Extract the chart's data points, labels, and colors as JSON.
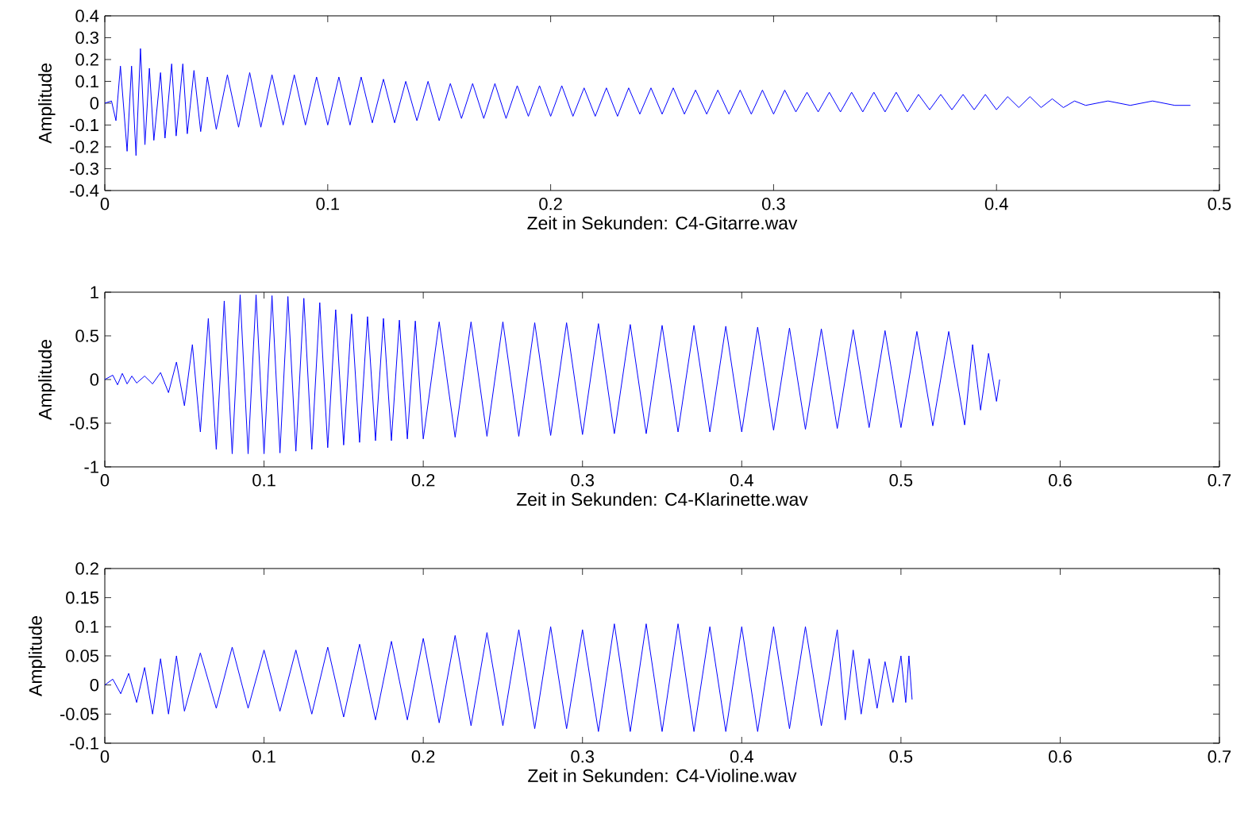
{
  "chart_data": [
    {
      "type": "line",
      "xlabel": "Zeit in Sekunden: C4-Gitarre.wav",
      "ylabel": "Amplitude",
      "xlim": [
        0,
        0.5
      ],
      "ylim": [
        -0.4,
        0.4
      ],
      "xticks": [
        0,
        0.1,
        0.2,
        0.3,
        0.4,
        0.5
      ],
      "yticks": [
        -0.4,
        -0.3,
        -0.2,
        -0.1,
        0,
        0.1,
        0.2,
        0.3,
        0.4
      ],
      "series": [
        {
          "color": "#0000ff",
          "x": [
            0,
            0.003,
            0.005,
            0.007,
            0.01,
            0.012,
            0.014,
            0.016,
            0.018,
            0.02,
            0.022,
            0.025,
            0.027,
            0.03,
            0.032,
            0.035,
            0.037,
            0.04,
            0.043,
            0.046,
            0.05,
            0.055,
            0.06,
            0.065,
            0.07,
            0.075,
            0.08,
            0.085,
            0.09,
            0.095,
            0.1,
            0.105,
            0.11,
            0.115,
            0.12,
            0.125,
            0.13,
            0.135,
            0.14,
            0.145,
            0.15,
            0.155,
            0.16,
            0.165,
            0.17,
            0.175,
            0.18,
            0.185,
            0.19,
            0.195,
            0.2,
            0.205,
            0.21,
            0.215,
            0.22,
            0.225,
            0.23,
            0.235,
            0.24,
            0.245,
            0.25,
            0.255,
            0.26,
            0.265,
            0.27,
            0.275,
            0.28,
            0.285,
            0.29,
            0.295,
            0.3,
            0.305,
            0.31,
            0.315,
            0.32,
            0.325,
            0.33,
            0.335,
            0.34,
            0.345,
            0.35,
            0.355,
            0.36,
            0.365,
            0.37,
            0.375,
            0.38,
            0.385,
            0.39,
            0.395,
            0.4,
            0.405,
            0.41,
            0.415,
            0.42,
            0.425,
            0.43,
            0.435,
            0.44,
            0.45,
            0.46,
            0.47,
            0.48,
            0.487
          ],
          "values": [
            0,
            0.01,
            -0.08,
            0.17,
            -0.22,
            0.17,
            -0.24,
            0.25,
            -0.19,
            0.16,
            -0.17,
            0.14,
            -0.16,
            0.18,
            -0.15,
            0.18,
            -0.14,
            0.15,
            -0.13,
            0.12,
            -0.12,
            0.13,
            -0.11,
            0.14,
            -0.11,
            0.13,
            -0.1,
            0.13,
            -0.1,
            0.12,
            -0.1,
            0.12,
            -0.1,
            0.12,
            -0.09,
            0.11,
            -0.09,
            0.1,
            -0.08,
            0.1,
            -0.08,
            0.09,
            -0.07,
            0.09,
            -0.07,
            0.09,
            -0.07,
            0.08,
            -0.06,
            0.08,
            -0.06,
            0.08,
            -0.06,
            0.07,
            -0.06,
            0.07,
            -0.06,
            0.07,
            -0.05,
            0.07,
            -0.05,
            0.07,
            -0.05,
            0.06,
            -0.05,
            0.06,
            -0.05,
            0.06,
            -0.05,
            0.06,
            -0.05,
            0.06,
            -0.04,
            0.05,
            -0.04,
            0.05,
            -0.04,
            0.05,
            -0.04,
            0.05,
            -0.04,
            0.05,
            -0.04,
            0.04,
            -0.03,
            0.04,
            -0.03,
            0.04,
            -0.03,
            0.04,
            -0.03,
            0.03,
            -0.02,
            0.03,
            -0.02,
            0.02,
            -0.02,
            0.01,
            -0.01,
            0.01,
            -0.01,
            0.01,
            -0.01,
            -0.01
          ]
        }
      ]
    },
    {
      "type": "line",
      "xlabel": "Zeit in Sekunden: C4-Klarinette.wav",
      "ylabel": "Amplitude",
      "xlim": [
        0,
        0.7
      ],
      "ylim": [
        -1,
        1
      ],
      "xticks": [
        0,
        0.1,
        0.2,
        0.3,
        0.4,
        0.5,
        0.6,
        0.7
      ],
      "yticks": [
        -1,
        -0.5,
        0,
        0.5,
        1
      ],
      "series": [
        {
          "color": "#0000ff",
          "x": [
            0,
            0.005,
            0.008,
            0.011,
            0.014,
            0.017,
            0.02,
            0.025,
            0.03,
            0.035,
            0.04,
            0.045,
            0.05,
            0.055,
            0.06,
            0.065,
            0.07,
            0.075,
            0.08,
            0.085,
            0.09,
            0.095,
            0.1,
            0.105,
            0.11,
            0.115,
            0.12,
            0.125,
            0.13,
            0.135,
            0.14,
            0.145,
            0.15,
            0.155,
            0.16,
            0.165,
            0.17,
            0.175,
            0.18,
            0.185,
            0.19,
            0.195,
            0.2,
            0.21,
            0.22,
            0.23,
            0.24,
            0.25,
            0.26,
            0.27,
            0.28,
            0.29,
            0.3,
            0.31,
            0.32,
            0.33,
            0.34,
            0.35,
            0.36,
            0.37,
            0.38,
            0.39,
            0.4,
            0.41,
            0.42,
            0.43,
            0.44,
            0.45,
            0.46,
            0.47,
            0.48,
            0.49,
            0.5,
            0.51,
            0.52,
            0.53,
            0.54,
            0.545,
            0.55,
            0.555,
            0.56,
            0.562
          ],
          "values": [
            0,
            0.05,
            -0.06,
            0.07,
            -0.05,
            0.04,
            -0.04,
            0.04,
            -0.05,
            0.08,
            -0.15,
            0.2,
            -0.3,
            0.4,
            -0.6,
            0.7,
            -0.8,
            0.9,
            -0.85,
            0.97,
            -0.85,
            0.97,
            -0.85,
            0.96,
            -0.84,
            0.95,
            -0.82,
            0.93,
            -0.8,
            0.88,
            -0.78,
            0.8,
            -0.75,
            0.75,
            -0.72,
            0.72,
            -0.7,
            0.7,
            -0.7,
            0.68,
            -0.68,
            0.67,
            -0.68,
            0.66,
            -0.66,
            0.66,
            -0.65,
            0.66,
            -0.65,
            0.65,
            -0.64,
            0.65,
            -0.63,
            0.64,
            -0.62,
            0.63,
            -0.62,
            0.62,
            -0.6,
            0.62,
            -0.6,
            0.61,
            -0.6,
            0.6,
            -0.58,
            0.59,
            -0.57,
            0.58,
            -0.56,
            0.57,
            -0.55,
            0.56,
            -0.55,
            0.55,
            -0.53,
            0.55,
            -0.52,
            0.4,
            -0.35,
            0.3,
            -0.25,
            0
          ]
        }
      ]
    },
    {
      "type": "line",
      "xlabel": "Zeit in Sekunden: C4-Violine.wav",
      "ylabel": "Amplitude",
      "xlim": [
        0,
        0.7
      ],
      "ylim": [
        -0.1,
        0.2
      ],
      "xticks": [
        0,
        0.1,
        0.2,
        0.3,
        0.4,
        0.5,
        0.6,
        0.7
      ],
      "yticks": [
        -0.1,
        -0.05,
        0,
        0.05,
        0.1,
        0.15,
        0.2
      ],
      "series": [
        {
          "color": "#0000ff",
          "x": [
            0,
            0.005,
            0.01,
            0.015,
            0.02,
            0.025,
            0.03,
            0.035,
            0.04,
            0.045,
            0.05,
            0.06,
            0.07,
            0.08,
            0.09,
            0.1,
            0.11,
            0.12,
            0.13,
            0.14,
            0.15,
            0.16,
            0.17,
            0.18,
            0.19,
            0.2,
            0.21,
            0.22,
            0.23,
            0.24,
            0.25,
            0.26,
            0.27,
            0.28,
            0.29,
            0.3,
            0.31,
            0.32,
            0.33,
            0.34,
            0.35,
            0.36,
            0.37,
            0.38,
            0.39,
            0.4,
            0.41,
            0.42,
            0.43,
            0.44,
            0.45,
            0.46,
            0.465,
            0.47,
            0.475,
            0.48,
            0.485,
            0.49,
            0.495,
            0.5,
            0.503,
            0.505,
            0.507
          ],
          "values": [
            0,
            0.01,
            -0.015,
            0.02,
            -0.03,
            0.03,
            -0.05,
            0.045,
            -0.05,
            0.05,
            -0.045,
            0.055,
            -0.04,
            0.065,
            -0.04,
            0.06,
            -0.045,
            0.06,
            -0.05,
            0.065,
            -0.055,
            0.07,
            -0.06,
            0.075,
            -0.06,
            0.08,
            -0.065,
            0.085,
            -0.07,
            0.09,
            -0.07,
            0.095,
            -0.075,
            0.1,
            -0.075,
            0.095,
            -0.08,
            0.105,
            -0.08,
            0.105,
            -0.08,
            0.105,
            -0.08,
            0.1,
            -0.08,
            0.1,
            -0.08,
            0.1,
            -0.075,
            0.1,
            -0.07,
            0.095,
            -0.06,
            0.06,
            -0.05,
            0.045,
            -0.04,
            0.04,
            -0.03,
            0.05,
            -0.03,
            0.05,
            -0.025
          ]
        }
      ]
    }
  ]
}
